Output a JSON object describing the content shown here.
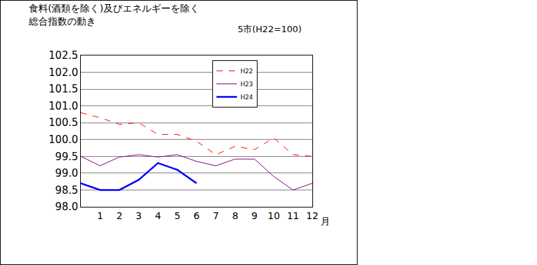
{
  "chart_data": {
    "type": "line",
    "title": [
      "食料(酒類を除く)及びエネルギーを除く",
      "総合指数の動き"
    ],
    "subtitle": "5市(H22=100)",
    "x_label": "月",
    "x": [
      0,
      1,
      2,
      3,
      4,
      5,
      6,
      7,
      8,
      9,
      10,
      11,
      12
    ],
    "xlim": [
      0,
      12
    ],
    "xticks": [
      1,
      2,
      3,
      4,
      5,
      6,
      7,
      8,
      9,
      10,
      11,
      12
    ],
    "ylim": [
      98.0,
      102.5
    ],
    "yticks": [
      {
        "value": 98.0,
        "label": "98.0"
      },
      98.5,
      {
        "value": 99.0,
        "label": "99.0"
      },
      99.5,
      {
        "value": 100.0,
        "label": "100.0"
      },
      100.5,
      {
        "value": 101.0,
        "label": "101.0"
      },
      101.5,
      {
        "value": 102.0,
        "label": "102.0"
      },
      102.5
    ],
    "grid": true,
    "legend": "top",
    "series": [
      {
        "name": "H22",
        "color": "#ff0000",
        "line_style": "dash",
        "values": [
          100.8,
          100.65,
          100.45,
          100.5,
          100.15,
          100.15,
          99.95,
          99.55,
          99.8,
          99.7,
          100.05,
          99.55,
          99.5
        ]
      },
      {
        "name": "H23",
        "color": "#800080",
        "line_style": "solid",
        "values": [
          99.5,
          99.22,
          99.48,
          99.55,
          99.48,
          99.55,
          99.35,
          99.22,
          99.42,
          99.42,
          98.9,
          98.5,
          98.7
        ]
      },
      {
        "name": "H24",
        "color": "#0000ff",
        "line_style": "solid",
        "values": [
          98.7,
          98.5,
          98.5,
          98.8,
          99.3,
          99.1,
          98.7,
          null,
          null,
          null,
          null,
          null,
          null
        ]
      }
    ]
  }
}
